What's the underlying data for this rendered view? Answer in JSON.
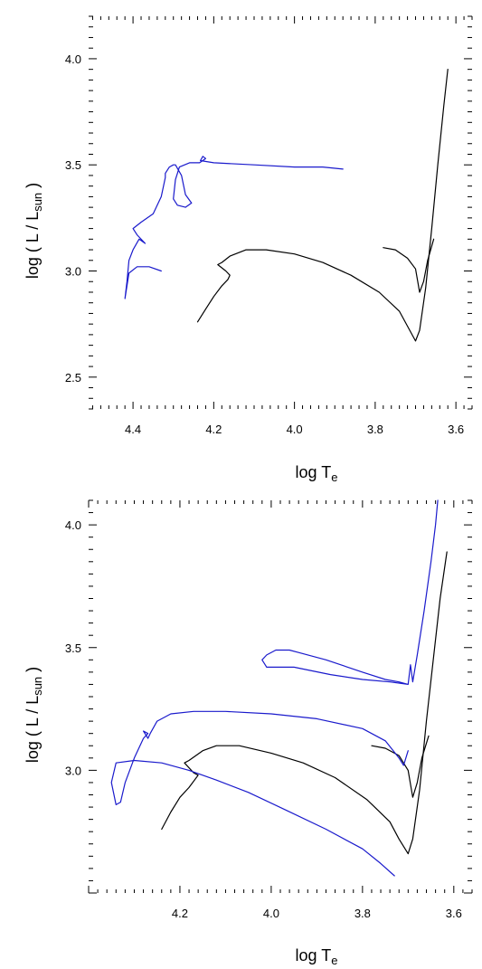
{
  "colors": {
    "track_black": "#000000",
    "track_blue": "#1a1acc",
    "axis": "#000000"
  },
  "chart_data": [
    {
      "type": "line",
      "xlabel": "log T",
      "xlabel_sub": "e",
      "ylabel": "log ( L / L",
      "ylabel_sub": "sun",
      "ylabel_end": " )",
      "x_reversed": true,
      "xlim": [
        4.51,
        3.56
      ],
      "ylim": [
        2.35,
        4.2
      ],
      "xticks": [
        4.4,
        4.2,
        4.0,
        3.8,
        3.6
      ],
      "xtick_labels": [
        "4.4",
        "4.2",
        "4.0",
        "3.8",
        "3.6"
      ],
      "yticks": [
        2.5,
        3.0,
        3.5,
        4.0
      ],
      "ytick_labels": [
        "2.5",
        "3.0",
        "3.5",
        "4.0"
      ],
      "grid": false,
      "series": [
        {
          "color": "black",
          "points": [
            [
              4.24,
              2.76
            ],
            [
              4.22,
              2.82
            ],
            [
              4.2,
              2.88
            ],
            [
              4.18,
              2.93
            ],
            [
              4.165,
              2.96
            ],
            [
              4.16,
              2.98
            ],
            [
              4.17,
              3.0
            ],
            [
              4.19,
              3.03
            ],
            [
              4.18,
              3.04
            ],
            [
              4.16,
              3.07
            ],
            [
              4.12,
              3.1
            ],
            [
              4.07,
              3.1
            ],
            [
              4.0,
              3.08
            ],
            [
              3.93,
              3.04
            ],
            [
              3.86,
              2.98
            ],
            [
              3.79,
              2.9
            ],
            [
              3.74,
              2.81
            ],
            [
              3.72,
              2.74
            ],
            [
              3.7,
              2.67
            ],
            [
              3.69,
              2.72
            ],
            [
              3.675,
              2.92
            ],
            [
              3.66,
              3.2
            ],
            [
              3.645,
              3.5
            ],
            [
              3.63,
              3.78
            ],
            [
              3.62,
              3.95
            ]
          ]
        },
        {
          "color": "black",
          "points": [
            [
              3.78,
              3.11
            ],
            [
              3.75,
              3.1
            ],
            [
              3.72,
              3.06
            ],
            [
              3.7,
              3.01
            ],
            [
              3.69,
              2.9
            ],
            [
              3.68,
              2.95
            ],
            [
              3.67,
              3.05
            ],
            [
              3.655,
              3.15
            ]
          ]
        },
        {
          "color": "blue",
          "points": [
            [
              4.33,
              3.0
            ],
            [
              4.36,
              3.02
            ],
            [
              4.39,
              3.02
            ],
            [
              4.41,
              2.99
            ],
            [
              4.42,
              2.87
            ],
            [
              4.415,
              2.95
            ],
            [
              4.41,
              3.05
            ],
            [
              4.4,
              3.1
            ],
            [
              4.385,
              3.15
            ],
            [
              4.37,
              3.13
            ],
            [
              4.39,
              3.17
            ],
            [
              4.4,
              3.2
            ],
            [
              4.38,
              3.23
            ],
            [
              4.35,
              3.27
            ],
            [
              4.33,
              3.35
            ],
            [
              4.32,
              3.44
            ],
            [
              4.32,
              3.46
            ],
            [
              4.31,
              3.49
            ],
            [
              4.3,
              3.5
            ],
            [
              4.295,
              3.5
            ],
            [
              4.28,
              3.45
            ],
            [
              4.27,
              3.36
            ],
            [
              4.255,
              3.32
            ],
            [
              4.27,
              3.3
            ],
            [
              4.29,
              3.31
            ],
            [
              4.3,
              3.34
            ],
            [
              4.295,
              3.43
            ],
            [
              4.285,
              3.49
            ],
            [
              4.26,
              3.51
            ],
            [
              4.235,
              3.51
            ],
            [
              4.22,
              3.53
            ],
            [
              4.227,
              3.54
            ],
            [
              4.233,
              3.52
            ],
            [
              4.2,
              3.51
            ],
            [
              4.1,
              3.5
            ],
            [
              4.0,
              3.49
            ],
            [
              3.93,
              3.49
            ],
            [
              3.88,
              3.48
            ]
          ]
        }
      ]
    },
    {
      "type": "line",
      "xlabel": "log T",
      "xlabel_sub": "e",
      "ylabel": "log ( L / L",
      "ylabel_sub": "sun",
      "ylabel_end": " )",
      "x_reversed": true,
      "xlim": [
        4.4,
        3.56
      ],
      "ylim": [
        2.5,
        4.1
      ],
      "xticks": [
        4.2,
        4.0,
        3.8,
        3.6
      ],
      "xtick_labels": [
        "4.2",
        "4.0",
        "3.8",
        "3.6"
      ],
      "yticks": [
        3.0,
        3.5,
        4.0
      ],
      "ytick_labels": [
        "3.0",
        "3.5",
        "4.0"
      ],
      "grid": false,
      "series": [
        {
          "color": "black",
          "points": [
            [
              4.24,
              2.76
            ],
            [
              4.22,
              2.83
            ],
            [
              4.2,
              2.89
            ],
            [
              4.18,
              2.93
            ],
            [
              4.16,
              2.98
            ],
            [
              4.17,
              2.99
            ],
            [
              4.19,
              3.03
            ],
            [
              4.18,
              3.04
            ],
            [
              4.15,
              3.08
            ],
            [
              4.12,
              3.1
            ],
            [
              4.07,
              3.1
            ],
            [
              4.0,
              3.07
            ],
            [
              3.93,
              3.03
            ],
            [
              3.86,
              2.97
            ],
            [
              3.79,
              2.88
            ],
            [
              3.74,
              2.79
            ],
            [
              3.72,
              2.72
            ],
            [
              3.7,
              2.66
            ],
            [
              3.69,
              2.72
            ],
            [
              3.675,
              2.92
            ],
            [
              3.66,
              3.2
            ],
            [
              3.645,
              3.45
            ],
            [
              3.63,
              3.7
            ],
            [
              3.615,
              3.89
            ]
          ]
        },
        {
          "color": "black",
          "points": [
            [
              3.78,
              3.1
            ],
            [
              3.75,
              3.09
            ],
            [
              3.72,
              3.06
            ],
            [
              3.7,
              3.0
            ],
            [
              3.69,
              2.89
            ],
            [
              3.68,
              2.95
            ],
            [
              3.67,
              3.05
            ],
            [
              3.655,
              3.14
            ]
          ]
        },
        {
          "color": "blue",
          "points": [
            [
              3.73,
              2.57
            ],
            [
              3.76,
              2.62
            ],
            [
              3.8,
              2.68
            ],
            [
              3.88,
              2.76
            ],
            [
              3.97,
              2.84
            ],
            [
              4.05,
              2.91
            ],
            [
              4.12,
              2.96
            ],
            [
              4.18,
              3.0
            ],
            [
              4.24,
              3.03
            ],
            [
              4.3,
              3.04
            ],
            [
              4.34,
              3.03
            ],
            [
              4.35,
              2.95
            ],
            [
              4.34,
              2.86
            ],
            [
              4.33,
              2.87
            ],
            [
              4.32,
              2.95
            ],
            [
              4.3,
              3.05
            ],
            [
              4.28,
              3.13
            ],
            [
              4.27,
              3.15
            ],
            [
              4.28,
              3.16
            ],
            [
              4.27,
              3.13
            ],
            [
              4.265,
              3.15
            ],
            [
              4.25,
              3.2
            ],
            [
              4.22,
              3.23
            ],
            [
              4.17,
              3.24
            ],
            [
              4.1,
              3.24
            ],
            [
              4.0,
              3.23
            ],
            [
              3.9,
              3.21
            ],
            [
              3.8,
              3.17
            ],
            [
              3.75,
              3.12
            ],
            [
              3.72,
              3.05
            ],
            [
              3.71,
              3.02
            ],
            [
              3.7,
              3.08
            ]
          ]
        },
        {
          "color": "blue",
          "points": [
            [
              3.7,
              3.35
            ],
            [
              3.74,
              3.36
            ],
            [
              3.8,
              3.37
            ],
            [
              3.87,
              3.39
            ],
            [
              3.95,
              3.42
            ],
            [
              4.01,
              3.42
            ],
            [
              4.02,
              3.45
            ],
            [
              4.01,
              3.47
            ],
            [
              3.99,
              3.49
            ],
            [
              3.96,
              3.49
            ],
            [
              3.94,
              3.48
            ],
            [
              3.88,
              3.45
            ],
            [
              3.8,
              3.4
            ],
            [
              3.75,
              3.37
            ],
            [
              3.72,
              3.36
            ],
            [
              3.7,
              3.35
            ],
            [
              3.695,
              3.43
            ],
            [
              3.69,
              3.36
            ],
            [
              3.68,
              3.47
            ],
            [
              3.665,
              3.65
            ],
            [
              3.65,
              3.85
            ],
            [
              3.64,
              4.0
            ],
            [
              3.635,
              4.1
            ]
          ]
        }
      ]
    }
  ]
}
